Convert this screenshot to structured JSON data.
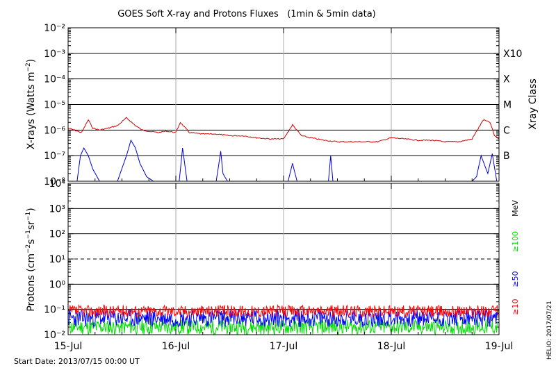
{
  "header": {
    "title": "GOES Soft X-ray and Protons Fluxes   (1min & 5min data)"
  },
  "footer": {
    "start_date": "Start Date: 2013/07/15 00:00 UT",
    "credit": "HELIO: 2017/07/21"
  },
  "colors": {
    "xray_long": "#d00000",
    "xray_short": "#0000d0",
    "p10": "#ff0000",
    "p50": "#0000ff",
    "p100": "#00dd00",
    "day_line": "#aaaaaa",
    "grid": "#000000"
  },
  "chart_data": [
    {
      "type": "line",
      "panel": "xray",
      "ylabel": "X-rays (Watts m⁻²)",
      "y_scale": "log",
      "ylim": [
        1e-08,
        0.01
      ],
      "xlim": [
        "2013-07-15 00:00",
        "2013-07-19 00:00"
      ],
      "x_ticks": [
        "15-Jul",
        "16-Jul",
        "17-Jul",
        "18-Jul",
        "19-Jul"
      ],
      "y_ticks": [
        "10⁻⁸",
        "10⁻⁷",
        "10⁻⁶",
        "10⁻⁵",
        "10⁻⁴",
        "10⁻³",
        "10⁻²"
      ],
      "y_tick_values": [
        1e-08,
        1e-07,
        1e-06,
        1e-05,
        0.0001,
        0.001,
        0.01
      ],
      "right_axis_label": "Xray Class",
      "classes": [
        {
          "name": "X10",
          "value": 0.001
        },
        {
          "name": "X",
          "value": 0.0001
        },
        {
          "name": "M",
          "value": 1e-05
        },
        {
          "name": "C",
          "value": 1e-06
        },
        {
          "name": "B",
          "value": 1e-07
        }
      ],
      "grid": true,
      "series": [
        {
          "x": [
            "2013-07-15 00:00",
            "2013-07-15 03:00",
            "2013-07-15 04:30",
            "2013-07-15 05:30",
            "2013-07-15 07:00",
            "2013-07-15 09:00",
            "2013-07-15 11:00",
            "2013-07-15 13:00",
            "2013-07-15 15:00",
            "2013-07-15 16:30",
            "2013-07-15 18:00",
            "2013-07-15 20:00",
            "2013-07-15 22:00",
            "2013-07-16 00:00",
            "2013-07-16 01:00",
            "2013-07-16 03:00",
            "2013-07-16 06:00",
            "2013-07-16 09:00",
            "2013-07-16 12:00",
            "2013-07-16 15:00",
            "2013-07-16 18:00",
            "2013-07-16 21:00",
            "2013-07-17 00:00",
            "2013-07-17 02:00",
            "2013-07-17 04:00",
            "2013-07-17 06:00",
            "2013-07-17 09:00",
            "2013-07-17 12:00",
            "2013-07-17 15:00",
            "2013-07-17 18:00",
            "2013-07-17 21:00",
            "2013-07-18 00:00",
            "2013-07-18 03:00",
            "2013-07-18 06:00",
            "2013-07-18 09:00",
            "2013-07-18 12:00",
            "2013-07-18 15:00",
            "2013-07-18 18:00",
            "2013-07-18 20:30",
            "2013-07-18 22:00",
            "2013-07-18 23:00",
            "2013-07-19 00:00"
          ],
          "values": [
            1.2e-06,
            8e-07,
            2.5e-06,
            1.2e-06,
            1e-06,
            1.2e-06,
            1.5e-06,
            3e-06,
            1.5e-06,
            1e-06,
            9e-07,
            8e-07,
            9e-07,
            8e-07,
            2e-06,
            8e-07,
            7e-07,
            7e-07,
            6e-07,
            6e-07,
            5e-07,
            4.5e-07,
            4.5e-07,
            1.6e-06,
            6e-07,
            5e-07,
            4e-07,
            3.5e-07,
            3.5e-07,
            3.5e-07,
            3.5e-07,
            5e-07,
            4.5e-07,
            4e-07,
            4e-07,
            3.5e-07,
            3.5e-07,
            4.5e-07,
            2.5e-06,
            2e-06,
            6e-07,
            4.5e-07
          ]
        },
        {
          "x": [
            "2013-07-15 00:00",
            "2013-07-15 02:00",
            "2013-07-15 02:45",
            "2013-07-15 03:30",
            "2013-07-15 04:30",
            "2013-07-15 05:30",
            "2013-07-15 07:00",
            "2013-07-15 11:00",
            "2013-07-15 13:00",
            "2013-07-15 14:00",
            "2013-07-15 15:00",
            "2013-07-15 16:00",
            "2013-07-15 17:30",
            "2013-07-15 19:00",
            "2013-07-16 00:00",
            "2013-07-16 00:45",
            "2013-07-16 01:30",
            "2013-07-16 02:30",
            "2013-07-16 09:00",
            "2013-07-16 10:00",
            "2013-07-16 10:30",
            "2013-07-16 11:30",
            "2013-07-17 00:00",
            "2013-07-17 01:00",
            "2013-07-17 02:00",
            "2013-07-17 03:00",
            "2013-07-17 10:00",
            "2013-07-17 10:30",
            "2013-07-17 11:00",
            "2013-07-18 18:00",
            "2013-07-18 19:00",
            "2013-07-18 20:00",
            "2013-07-18 21:30",
            "2013-07-18 22:30",
            "2013-07-18 23:30"
          ],
          "values": [
            1e-08,
            1e-08,
            1e-07,
            2e-07,
            1e-07,
            3e-08,
            1e-08,
            1e-08,
            1e-07,
            4e-07,
            2e-07,
            5e-08,
            1.5e-08,
            1e-08,
            1e-08,
            1e-08,
            2e-07,
            1e-08,
            1e-08,
            1.5e-07,
            2e-08,
            1e-08,
            1e-08,
            1e-08,
            5e-08,
            1e-08,
            1e-08,
            1e-07,
            1e-08,
            1e-08,
            1.5e-08,
            1e-07,
            2e-08,
            1.2e-07,
            1e-08
          ]
        }
      ]
    },
    {
      "type": "line",
      "panel": "protons",
      "ylabel": "Protons (cm⁻²s⁻¹sr⁻¹)",
      "y_scale": "log",
      "ylim": [
        0.01,
        10000
      ],
      "xlim": [
        "2013-07-15 00:00",
        "2013-07-19 00:00"
      ],
      "x_ticks": [
        "15-Jul",
        "16-Jul",
        "17-Jul",
        "18-Jul",
        "19-Jul"
      ],
      "y_ticks": [
        "10⁻²",
        "10⁻¹",
        "10⁰",
        "10¹",
        "10²",
        "10³",
        "10⁴"
      ],
      "y_tick_values": [
        0.01,
        0.1,
        1,
        10,
        100,
        1000,
        10000
      ],
      "threshold": 10,
      "right_axis_unit": "MeV",
      "grid": true,
      "series": [
        {
          "name": "≥10",
          "values": [
            0.05,
            0.15
          ]
        },
        {
          "name": "≥50",
          "values": [
            0.02,
            0.1
          ]
        },
        {
          "name": "≥100",
          "values": [
            0.01,
            0.04
          ]
        }
      ]
    }
  ]
}
